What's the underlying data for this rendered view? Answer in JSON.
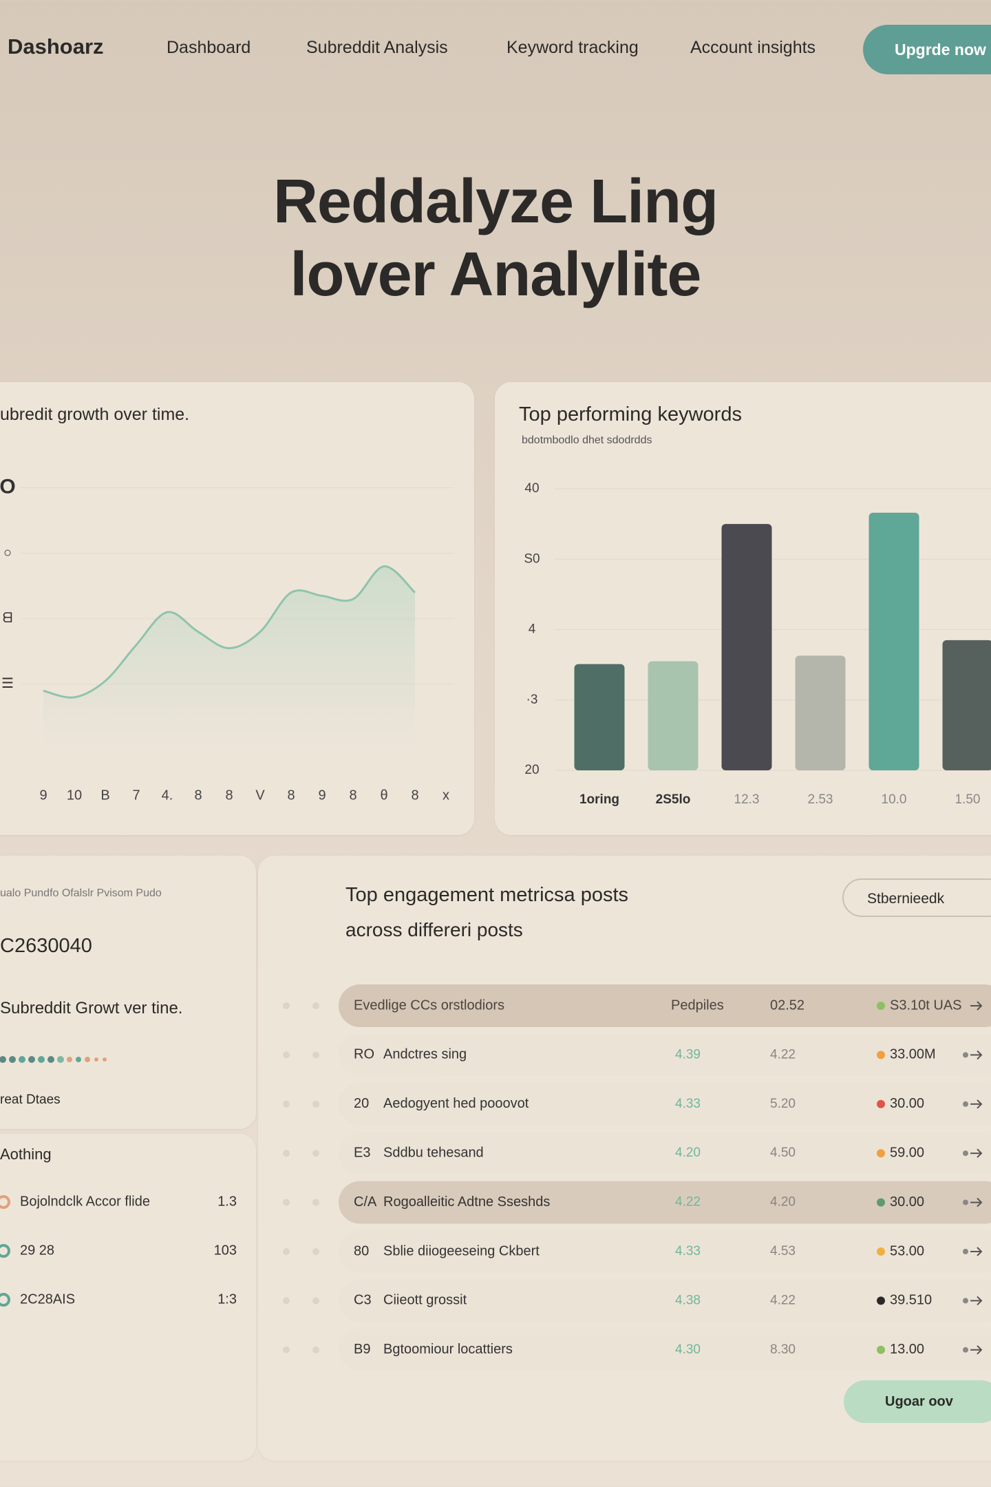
{
  "nav": {
    "brand": "Dashoarz",
    "links": [
      "Dashboard",
      "Subreddit Analysis",
      "Keyword tracking",
      "Account insights"
    ],
    "button": "Upgrde now"
  },
  "hero": {
    "title_lines": [
      "Reddalyze Ling",
      "lover Analylite"
    ]
  },
  "line_chart": {
    "type": "line",
    "title": "ubredit growth over time.",
    "categories": [
      "9",
      "10",
      "B",
      "7",
      "4.",
      "8",
      "8",
      "V",
      "8",
      "9",
      "8",
      "θ",
      "8",
      "x"
    ],
    "values": [
      9,
      8,
      10.5,
      16,
      21,
      18,
      15.5,
      18,
      24,
      23.5,
      23,
      28,
      24,
      null
    ],
    "color": "#8fc4ac",
    "ylim": [
      0,
      45
    ],
    "yticks": [
      {
        "value": 10,
        "label": "☰"
      },
      {
        "value": 20,
        "label": "ᗺ"
      },
      {
        "value": 30,
        "label": "○"
      },
      {
        "value": 40,
        "label": "O"
      }
    ]
  },
  "bar_chart": {
    "type": "bar",
    "title": "Top performing keywords",
    "subtitle": "bdotmbodlo dhet sdodrdds",
    "categories": [
      "1oring",
      "2S5lo",
      "12.3",
      "2.53",
      "10.0",
      "1.50"
    ],
    "values": [
      35.1,
      35.5,
      55,
      36.3,
      56.6,
      38.5
    ],
    "colors": [
      "#4e6e66",
      "#a8c3ae",
      "#4a4a50",
      "#b4b6ab",
      "#5fa797",
      "#56615d"
    ],
    "ylim": [
      20,
      60
    ],
    "yticks": [
      20,
      {
        "value": 30,
        "label": "·3"
      },
      {
        "value": 40,
        "label": "4"
      },
      {
        "value": 50,
        "label": "S0"
      },
      {
        "value": 60,
        "label": "40"
      }
    ],
    "grid": true
  },
  "summary": {
    "caption": "ualo Pundfo Ofalslr Pvisom Pudo",
    "value": "C2630040",
    "subtitle": "Subreddit Growt ver tine.",
    "note": "reat Dtaes"
  },
  "list": {
    "title": "Aothing",
    "rows": [
      {
        "label": "Bojolndclk Accor flide",
        "value": "1.3",
        "color": "#e0a27c"
      },
      {
        "label": "29 28",
        "value": "103",
        "color": "#5fa797"
      },
      {
        "label": "2C28AIS",
        "value": "1:3",
        "color": "#5fa797"
      }
    ]
  },
  "table": {
    "title_lines": [
      "Top engagement metricsa posts",
      "across differeri posts"
    ],
    "button": "Stbernieedk",
    "header": [
      "Evedlige CCs orstlodiors",
      "Pedpiles",
      "02.52",
      "S3.10t UAS"
    ],
    "header_dot": "#8cc063",
    "rows": [
      {
        "cells": [
          "RO",
          "Andctres sing",
          "4.39",
          "4.22",
          "33.00M"
        ],
        "dot": "#f0a040"
      },
      {
        "cells": [
          "20",
          "Aedogyent hed pooovot",
          "4.33",
          "5.20",
          "30.00"
        ],
        "dot": "#e0554a"
      },
      {
        "cells": [
          "E3",
          "Sddbu tehesand",
          "4.20",
          "4.50",
          "59.00"
        ],
        "dot": "#f0a040"
      },
      {
        "cells": [
          "C/A",
          "Rogoalleitic Adtne Sseshds",
          "4.22",
          "4.20",
          "30.00"
        ],
        "dot": "#5f9a6e"
      },
      {
        "cells": [
          "80",
          "Sblie diiogeeseing Ckbert",
          "4.33",
          "4.53",
          "53.00"
        ],
        "dot": "#f0b040"
      },
      {
        "cells": [
          "C3",
          "Ciieott grossit",
          "4.38",
          "4.22",
          "39.510"
        ],
        "dot": "#2b2a28"
      },
      {
        "cells": [
          "B9",
          "Bgtoomiour locattiers",
          "4.30",
          "8.30",
          "13.00"
        ],
        "dot": "#8cc063"
      }
    ],
    "highlight_rows": [
      3
    ],
    "footer_button": "Ugoar oov"
  }
}
